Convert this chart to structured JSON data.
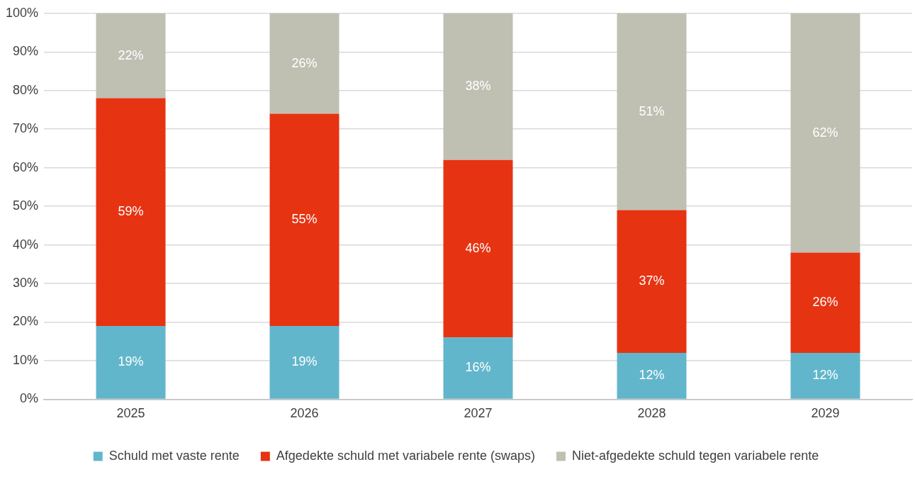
{
  "chart_data": {
    "type": "bar",
    "stacked": true,
    "categories": [
      "2025",
      "2026",
      "2027",
      "2028",
      "2029"
    ],
    "series": [
      {
        "name": "Schuld met vaste rente",
        "color": "#62b6cb",
        "values": [
          19,
          19,
          16,
          12,
          12
        ]
      },
      {
        "name": "Afgedekte schuld met variabele rente (swaps)",
        "color": "#e63312",
        "values": [
          59,
          55,
          46,
          37,
          26
        ]
      },
      {
        "name": "Niet-afgedekte schuld tegen variabele rente",
        "color": "#bfc0b2",
        "values": [
          22,
          26,
          38,
          51,
          62
        ]
      }
    ],
    "ylim": [
      0,
      100
    ],
    "yticks": [
      {
        "value": 0,
        "label": "0%"
      },
      {
        "value": 10,
        "label": "10%"
      },
      {
        "value": 20,
        "label": "20%"
      },
      {
        "value": 30,
        "label": "30%"
      },
      {
        "value": 40,
        "label": "40%"
      },
      {
        "value": 50,
        "label": "50%"
      },
      {
        "value": 60,
        "label": "60%"
      },
      {
        "value": 70,
        "label": "70%"
      },
      {
        "value": 80,
        "label": "80%"
      },
      {
        "value": 90,
        "label": "90%"
      },
      {
        "value": 100,
        "label": "100%"
      }
    ],
    "value_labels": [
      [
        "19%",
        "19%",
        "16%",
        "12%",
        "12%"
      ],
      [
        "59%",
        "55%",
        "46%",
        "37%",
        "26%"
      ],
      [
        "22%",
        "26%",
        "38%",
        "51%",
        "62%"
      ]
    ],
    "grid": "y",
    "legend": "bottom"
  }
}
